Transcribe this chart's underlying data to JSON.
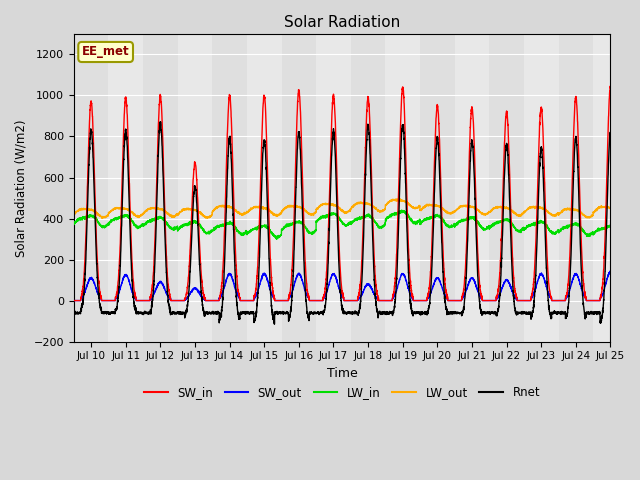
{
  "title": "Solar Radiation",
  "ylabel": "Solar Radiation (W/m2)",
  "xlabel": "Time",
  "xlim_days": [
    9.5,
    25.0
  ],
  "ylim": [
    -200,
    1300
  ],
  "yticks": [
    -200,
    0,
    200,
    400,
    600,
    800,
    1000,
    1200
  ],
  "xtick_labels": [
    "Jul 10",
    "Jul 11",
    "Jul 12",
    "Jul 13",
    "Jul 14",
    "Jul 15",
    "Jul 16",
    "Jul 17",
    "Jul 18",
    "Jul 19",
    "Jul 20",
    "Jul 21",
    "Jul 22",
    "Jul 23",
    "Jul 24",
    "Jul 25"
  ],
  "xtick_positions": [
    10,
    11,
    12,
    13,
    14,
    15,
    16,
    17,
    18,
    19,
    20,
    21,
    22,
    23,
    24,
    25
  ],
  "annotation_text": "EE_met",
  "background_color": "#d8d8d8",
  "plot_bg_color": "#e8e8e8",
  "series": {
    "SW_in": {
      "color": "#ff0000",
      "lw": 1.0
    },
    "SW_out": {
      "color": "#0000ff",
      "lw": 1.0
    },
    "LW_in": {
      "color": "#00dd00",
      "lw": 1.0
    },
    "LW_out": {
      "color": "#ffaa00",
      "lw": 1.0
    },
    "Rnet": {
      "color": "#000000",
      "lw": 1.0
    }
  },
  "n_days": 16,
  "start_day": 9.5,
  "pts_per_day": 288,
  "sw_in_peaks": [
    970,
    990,
    1000,
    670,
    1000,
    1000,
    1025,
    1000,
    990,
    1040,
    950,
    940,
    920,
    940,
    990,
    1040
  ],
  "sw_out_peaks": [
    110,
    125,
    90,
    60,
    130,
    130,
    130,
    130,
    80,
    130,
    110,
    110,
    100,
    130,
    130,
    140
  ],
  "lw_in_base": [
    390,
    390,
    380,
    360,
    355,
    340,
    360,
    400,
    390,
    410,
    390,
    380,
    370,
    360,
    350,
    340
  ],
  "lw_out_base": [
    430,
    435,
    435,
    430,
    445,
    440,
    445,
    455,
    460,
    475,
    450,
    445,
    440,
    440,
    430,
    440
  ],
  "night_rnet": -60
}
